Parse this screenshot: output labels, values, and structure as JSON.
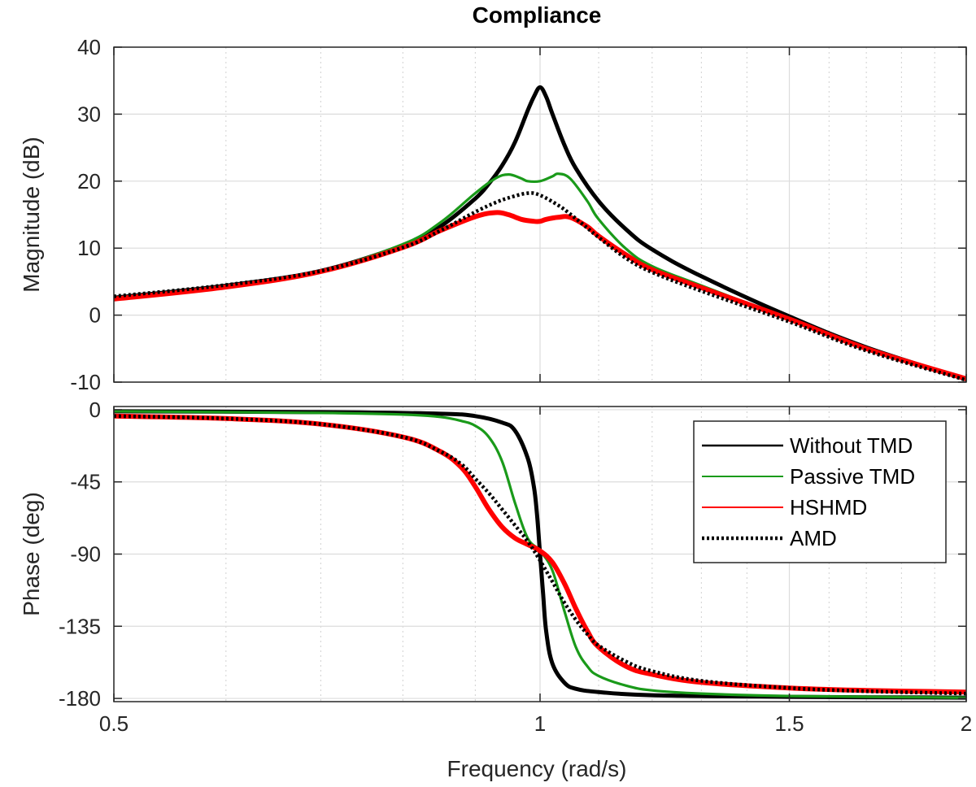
{
  "chart_data": {
    "type": "line",
    "title": "Compliance",
    "xlabel": "Frequency  (rad/s)",
    "x_scale": "log",
    "xlim": [
      0.5,
      2
    ],
    "x_ticks": [
      0.5,
      1,
      1.5,
      2
    ],
    "x_tick_labels": [
      "0.5",
      "1",
      "1.5",
      "2"
    ],
    "grid": true,
    "legend_position": "right",
    "panels": [
      {
        "name": "magnitude",
        "ylabel": "Magnitude (dB)",
        "ylim": [
          -10,
          40
        ],
        "y_ticks": [
          -10,
          0,
          10,
          20,
          30,
          40
        ],
        "y_tick_labels": [
          "-10",
          "0",
          "10",
          "20",
          "30",
          "40"
        ],
        "series": [
          {
            "name": "Without TMD",
            "x": [
              0.5,
              0.6,
              0.7,
              0.8,
              0.85,
              0.9,
              0.92,
              0.94,
              0.96,
              0.98,
              0.99,
              1.0,
              1.01,
              1.02,
              1.04,
              1.06,
              1.1,
              1.15,
              1.2,
              1.3,
              1.5,
              1.7,
              2.0
            ],
            "y": [
              2.6,
              4.4,
              6.6,
              10.4,
              13.2,
              17.4,
              19.6,
              22.3,
              25.8,
              30.5,
              32.6,
              34.0,
              32.6,
              30.1,
              25.5,
              21.9,
              17.0,
              12.8,
              9.8,
              5.8,
              -0.2,
              -4.8,
              -9.6
            ]
          },
          {
            "name": "Passive TMD",
            "x": [
              0.5,
              0.6,
              0.7,
              0.8,
              0.85,
              0.9,
              0.93,
              0.95,
              0.97,
              0.98,
              1.0,
              1.02,
              1.03,
              1.05,
              1.08,
              1.1,
              1.15,
              1.2,
              1.3,
              1.5,
              1.7,
              2.0
            ],
            "y": [
              2.5,
              4.3,
              6.6,
              10.6,
              13.8,
              18.2,
              20.4,
              21.0,
              20.4,
              20.0,
              20.0,
              20.7,
              21.1,
              20.4,
              17.0,
              14.3,
              9.9,
              7.3,
              4.4,
              -0.6,
              -5.0,
              -9.6
            ]
          },
          {
            "name": "HSHMD",
            "x": [
              0.5,
              0.6,
              0.7,
              0.8,
              0.85,
              0.9,
              0.93,
              0.95,
              0.97,
              0.99,
              1.0,
              1.01,
              1.03,
              1.05,
              1.08,
              1.1,
              1.15,
              1.2,
              1.3,
              1.5,
              1.7,
              2.0
            ],
            "y": [
              2.4,
              4.2,
              6.5,
              10.1,
              12.6,
              14.7,
              15.3,
              15.0,
              14.3,
              14.0,
              14.0,
              14.3,
              14.6,
              14.6,
              13.2,
              11.8,
              9.0,
              6.8,
              4.1,
              -0.6,
              -5.0,
              -9.5
            ]
          },
          {
            "name": "AMD",
            "x": [
              0.5,
              0.6,
              0.7,
              0.8,
              0.85,
              0.9,
              0.93,
              0.95,
              0.98,
              1.0,
              1.03,
              1.05,
              1.08,
              1.1,
              1.15,
              1.2,
              1.3,
              1.5,
              1.7,
              2.0
            ],
            "y": [
              2.8,
              4.5,
              6.6,
              10.1,
              12.6,
              15.4,
              16.8,
              17.5,
              18.2,
              17.9,
              16.4,
              15.1,
              13.0,
              11.6,
              8.5,
              6.4,
              3.6,
              -1.0,
              -5.3,
              -9.7
            ]
          }
        ]
      },
      {
        "name": "phase",
        "ylabel": "Phase (deg)",
        "ylim": [
          -182,
          2
        ],
        "y_ticks": [
          0,
          -45,
          -90,
          -135,
          -180
        ],
        "y_tick_labels": [
          "0",
          "-45",
          "-90",
          "-135",
          "-180"
        ],
        "series": [
          {
            "name": "Without TMD",
            "x": [
              0.5,
              0.7,
              0.85,
              0.9,
              0.94,
              0.96,
              0.98,
              0.99,
              0.995,
              1.0,
              1.005,
              1.01,
              1.02,
              1.04,
              1.06,
              1.1,
              1.2,
              1.5,
              2.0
            ],
            "y": [
              -1,
              -1.5,
              -2.5,
              -4,
              -8,
              -13,
              -30,
              -48,
              -65,
              -90,
              -115,
              -138,
              -158,
              -170,
              -174,
              -176,
              -178,
              -179,
              -179.5
            ]
          },
          {
            "name": "Passive TMD",
            "x": [
              0.5,
              0.7,
              0.8,
              0.85,
              0.88,
              0.9,
              0.92,
              0.94,
              0.96,
              0.98,
              1.0,
              1.02,
              1.04,
              1.06,
              1.08,
              1.1,
              1.15,
              1.2,
              1.3,
              1.5,
              2.0
            ],
            "y": [
              -1,
              -2,
              -3,
              -4.5,
              -7,
              -10,
              -17,
              -32,
              -58,
              -80,
              -88,
              -100,
              -125,
              -148,
              -160,
              -166,
              -172,
              -175,
              -177,
              -178.5,
              -179.5
            ]
          },
          {
            "name": "HSHMD",
            "x": [
              0.5,
              0.6,
              0.7,
              0.8,
              0.85,
              0.88,
              0.9,
              0.92,
              0.94,
              0.96,
              0.98,
              1.0,
              1.02,
              1.04,
              1.06,
              1.08,
              1.1,
              1.15,
              1.2,
              1.3,
              1.5,
              1.7,
              2.0
            ],
            "y": [
              -4,
              -5.5,
              -9,
              -17,
              -26,
              -36,
              -48,
              -62,
              -73,
              -80,
              -84,
              -88,
              -95,
              -108,
              -124,
              -138,
              -148,
              -160,
              -165,
              -170,
              -173.5,
              -175,
              -176
            ]
          },
          {
            "name": "AMD",
            "x": [
              0.5,
              0.6,
              0.7,
              0.8,
              0.85,
              0.88,
              0.9,
              0.92,
              0.94,
              0.96,
              0.98,
              1.0,
              1.02,
              1.04,
              1.06,
              1.08,
              1.1,
              1.15,
              1.2,
              1.3,
              1.5,
              1.7,
              2.0
            ],
            "y": [
              -4,
              -5.5,
              -9,
              -17,
              -26,
              -34,
              -43,
              -52,
              -62,
              -72,
              -82,
              -94,
              -107,
              -120,
              -131,
              -140,
              -147,
              -157,
              -163,
              -169,
              -173.5,
              -175.5,
              -177
            ]
          }
        ]
      }
    ],
    "legend": [
      {
        "name": "Without TMD",
        "color": "#000000",
        "style": "solid"
      },
      {
        "name": "Passive TMD",
        "color": "#1a9a1a",
        "style": "solid"
      },
      {
        "name": "HSHMD",
        "color": "#ff0000",
        "style": "solid"
      },
      {
        "name": "AMD",
        "color": "#000000",
        "style": "dotted"
      }
    ]
  }
}
